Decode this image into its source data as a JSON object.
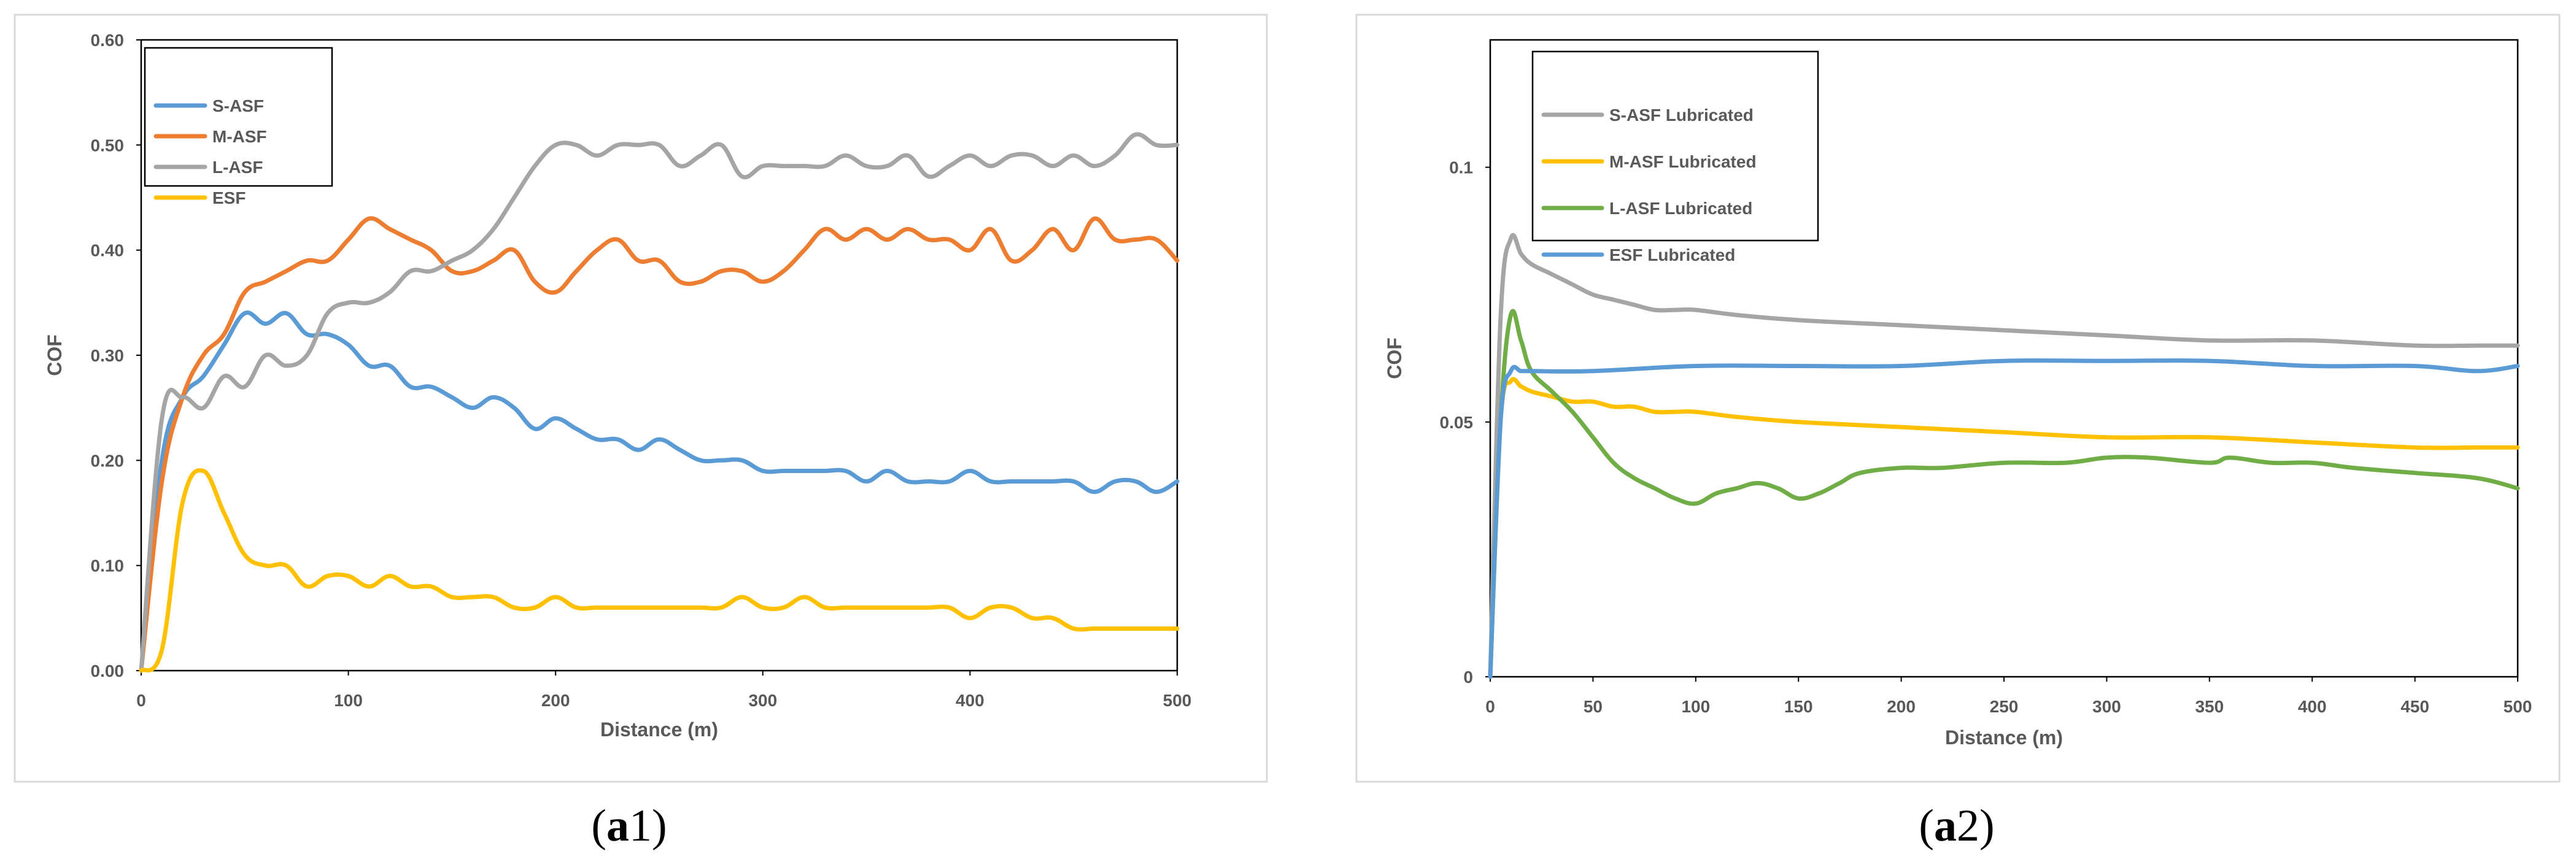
{
  "chart_data": [
    {
      "type": "line",
      "panel_label": "a1",
      "xlabel": "Distance (m)",
      "ylabel": "COF",
      "xlim": [
        0,
        500
      ],
      "ylim": [
        0,
        0.6
      ],
      "xticks": [
        "0",
        "100",
        "200",
        "300",
        "400",
        "500"
      ],
      "yticks": [
        "0.00",
        "0.10",
        "0.20",
        "0.30",
        "0.40",
        "0.50",
        "0.60"
      ],
      "legend_position": "top-left",
      "series": [
        {
          "name": "S-ASF",
          "color": "#5b9bd5",
          "x": [
            0,
            10,
            20,
            30,
            40,
            50,
            60,
            70,
            80,
            90,
            100,
            110,
            120,
            130,
            140,
            150,
            160,
            170,
            180,
            190,
            200,
            210,
            220,
            230,
            240,
            250,
            260,
            270,
            280,
            290,
            300,
            310,
            320,
            330,
            340,
            350,
            360,
            370,
            380,
            390,
            400,
            410,
            420,
            430,
            440,
            450,
            460,
            470,
            480,
            490,
            500
          ],
          "y": [
            0.0,
            0.2,
            0.26,
            0.28,
            0.31,
            0.34,
            0.33,
            0.34,
            0.32,
            0.32,
            0.31,
            0.29,
            0.29,
            0.27,
            0.27,
            0.26,
            0.25,
            0.26,
            0.25,
            0.23,
            0.24,
            0.23,
            0.22,
            0.22,
            0.21,
            0.22,
            0.21,
            0.2,
            0.2,
            0.2,
            0.19,
            0.19,
            0.19,
            0.19,
            0.19,
            0.18,
            0.19,
            0.18,
            0.18,
            0.18,
            0.19,
            0.18,
            0.18,
            0.18,
            0.18,
            0.18,
            0.17,
            0.18,
            0.18,
            0.17,
            0.18
          ]
        },
        {
          "name": "M-ASF",
          "color": "#ed7d31",
          "x": [
            0,
            10,
            20,
            30,
            40,
            50,
            60,
            70,
            80,
            90,
            100,
            110,
            120,
            130,
            140,
            150,
            160,
            170,
            180,
            190,
            200,
            210,
            220,
            230,
            240,
            250,
            260,
            270,
            280,
            290,
            300,
            310,
            320,
            330,
            340,
            350,
            360,
            370,
            380,
            390,
            400,
            410,
            420,
            430,
            440,
            450,
            460,
            470,
            480,
            490,
            500
          ],
          "y": [
            0.0,
            0.18,
            0.26,
            0.3,
            0.32,
            0.36,
            0.37,
            0.38,
            0.39,
            0.39,
            0.41,
            0.43,
            0.42,
            0.41,
            0.4,
            0.38,
            0.38,
            0.39,
            0.4,
            0.37,
            0.36,
            0.38,
            0.4,
            0.41,
            0.39,
            0.39,
            0.37,
            0.37,
            0.38,
            0.38,
            0.37,
            0.38,
            0.4,
            0.42,
            0.41,
            0.42,
            0.41,
            0.42,
            0.41,
            0.41,
            0.4,
            0.42,
            0.39,
            0.4,
            0.42,
            0.4,
            0.43,
            0.41,
            0.41,
            0.41,
            0.39
          ]
        },
        {
          "name": "L-ASF",
          "color": "#a5a5a5",
          "x": [
            0,
            10,
            20,
            30,
            40,
            50,
            60,
            70,
            80,
            90,
            100,
            110,
            120,
            130,
            140,
            150,
            160,
            170,
            180,
            190,
            200,
            210,
            220,
            230,
            240,
            250,
            260,
            270,
            280,
            290,
            300,
            310,
            320,
            330,
            340,
            350,
            360,
            370,
            380,
            390,
            400,
            410,
            420,
            430,
            440,
            450,
            460,
            470,
            480,
            490,
            500
          ],
          "y": [
            0.0,
            0.24,
            0.26,
            0.25,
            0.28,
            0.27,
            0.3,
            0.29,
            0.3,
            0.34,
            0.35,
            0.35,
            0.36,
            0.38,
            0.38,
            0.39,
            0.4,
            0.42,
            0.45,
            0.48,
            0.5,
            0.5,
            0.49,
            0.5,
            0.5,
            0.5,
            0.48,
            0.49,
            0.5,
            0.47,
            0.48,
            0.48,
            0.48,
            0.48,
            0.49,
            0.48,
            0.48,
            0.49,
            0.47,
            0.48,
            0.49,
            0.48,
            0.49,
            0.49,
            0.48,
            0.49,
            0.48,
            0.49,
            0.51,
            0.5,
            0.5
          ]
        },
        {
          "name": "ESF",
          "color": "#ffc000",
          "x": [
            0,
            10,
            20,
            30,
            40,
            50,
            60,
            70,
            80,
            90,
            100,
            110,
            120,
            130,
            140,
            150,
            160,
            170,
            180,
            190,
            200,
            210,
            220,
            230,
            240,
            250,
            260,
            270,
            280,
            290,
            300,
            310,
            320,
            330,
            340,
            350,
            360,
            370,
            380,
            390,
            400,
            410,
            420,
            430,
            440,
            450,
            460,
            470,
            480,
            490,
            500
          ],
          "y": [
            0.0,
            0.02,
            0.16,
            0.19,
            0.15,
            0.11,
            0.1,
            0.1,
            0.08,
            0.09,
            0.09,
            0.08,
            0.09,
            0.08,
            0.08,
            0.07,
            0.07,
            0.07,
            0.06,
            0.06,
            0.07,
            0.06,
            0.06,
            0.06,
            0.06,
            0.06,
            0.06,
            0.06,
            0.06,
            0.07,
            0.06,
            0.06,
            0.07,
            0.06,
            0.06,
            0.06,
            0.06,
            0.06,
            0.06,
            0.06,
            0.05,
            0.06,
            0.06,
            0.05,
            0.05,
            0.04,
            0.04,
            0.04,
            0.04,
            0.04,
            0.04
          ]
        }
      ]
    },
    {
      "type": "line",
      "panel_label": "a2",
      "xlabel": "Distance (m)",
      "ylabel": "COF",
      "xlim": [
        0,
        500
      ],
      "ylim": [
        0,
        0.125
      ],
      "xticks": [
        "0",
        "50",
        "100",
        "150",
        "200",
        "250",
        "300",
        "350",
        "400",
        "450",
        "500"
      ],
      "yticks": [
        "0",
        "0.05",
        "0.1"
      ],
      "legend_position": "top-left",
      "series": [
        {
          "name": "S-ASF Lubricated",
          "color": "#a5a5a5",
          "x": [
            0,
            5,
            10,
            15,
            20,
            30,
            40,
            50,
            60,
            70,
            80,
            90,
            100,
            120,
            150,
            200,
            250,
            300,
            350,
            400,
            450,
            480,
            500
          ],
          "y": [
            0.0,
            0.07,
            0.086,
            0.083,
            0.081,
            0.079,
            0.077,
            0.075,
            0.074,
            0.073,
            0.072,
            0.072,
            0.072,
            0.071,
            0.07,
            0.069,
            0.068,
            0.067,
            0.066,
            0.066,
            0.065,
            0.065,
            0.065
          ]
        },
        {
          "name": "M-ASF Lubricated",
          "color": "#ffc000",
          "x": [
            0,
            5,
            10,
            15,
            20,
            30,
            40,
            50,
            60,
            70,
            80,
            90,
            100,
            120,
            150,
            200,
            250,
            300,
            350,
            400,
            450,
            480,
            500
          ],
          "y": [
            0.0,
            0.05,
            0.058,
            0.057,
            0.056,
            0.055,
            0.054,
            0.054,
            0.053,
            0.053,
            0.052,
            0.052,
            0.052,
            0.051,
            0.05,
            0.049,
            0.048,
            0.047,
            0.047,
            0.046,
            0.045,
            0.045,
            0.045
          ]
        },
        {
          "name": "L-ASF Lubricated",
          "color": "#70ad47",
          "x": [
            0,
            5,
            10,
            15,
            20,
            30,
            40,
            50,
            60,
            70,
            80,
            90,
            100,
            110,
            120,
            130,
            140,
            150,
            160,
            170,
            180,
            200,
            220,
            250,
            280,
            300,
            320,
            350,
            360,
            380,
            400,
            420,
            450,
            480,
            500
          ],
          "y": [
            0.0,
            0.05,
            0.071,
            0.066,
            0.06,
            0.056,
            0.052,
            0.047,
            0.042,
            0.039,
            0.037,
            0.035,
            0.034,
            0.036,
            0.037,
            0.038,
            0.037,
            0.035,
            0.036,
            0.038,
            0.04,
            0.041,
            0.041,
            0.042,
            0.042,
            0.043,
            0.043,
            0.042,
            0.043,
            0.042,
            0.042,
            0.041,
            0.04,
            0.039,
            0.037
          ]
        },
        {
          "name": "ESF Lubricated",
          "color": "#5b9bd5",
          "x": [
            0,
            5,
            10,
            15,
            20,
            50,
            100,
            150,
            200,
            250,
            300,
            350,
            400,
            450,
            480,
            500
          ],
          "y": [
            0.0,
            0.05,
            0.06,
            0.06,
            0.06,
            0.06,
            0.061,
            0.061,
            0.061,
            0.062,
            0.062,
            0.062,
            0.061,
            0.061,
            0.06,
            0.061
          ]
        }
      ]
    }
  ],
  "labels": {
    "a1_letter": "a",
    "a1_number": "1",
    "a2_letter": "a",
    "a2_number": "2",
    "open_paren": "(",
    "close_paren": ")"
  }
}
